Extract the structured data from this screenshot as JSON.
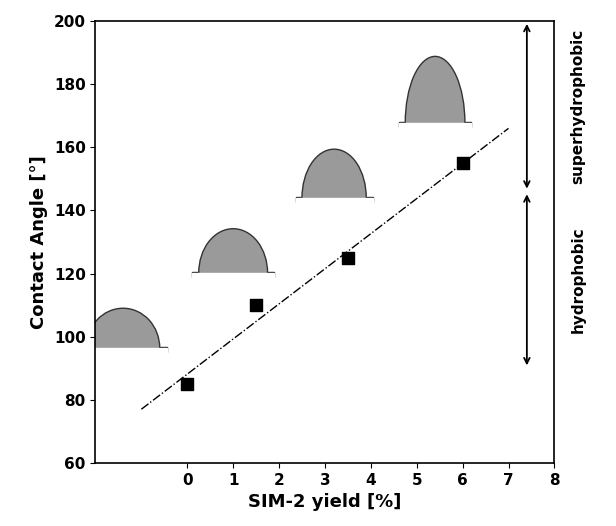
{
  "chart_data": {
    "type": "scatter",
    "x_label": "SIM-2 yield [%]",
    "y_label": "Contact Angle [°]",
    "x": [
      0,
      1.5,
      3.5,
      6
    ],
    "values": [
      85,
      110,
      125,
      155
    ],
    "color": "#000000",
    "marker": "square",
    "xlim": [
      -2,
      8
    ],
    "xticks": [
      0,
      1,
      2,
      3,
      4,
      5,
      6,
      7,
      8
    ],
    "ylim": [
      60,
      200
    ],
    "yticks": [
      60,
      80,
      100,
      120,
      140,
      160,
      180,
      200
    ],
    "grid": false,
    "trend_line": {
      "x": [
        -1,
        7
      ],
      "y": [
        77,
        166
      ],
      "line_style": "dashdot",
      "color": "#000000"
    },
    "annotations": [
      {
        "text": "superhydrophobic",
        "y_range": [
          146,
          200
        ]
      },
      {
        "text": "hydrophobic",
        "y_range": [
          90,
          146
        ]
      }
    ]
  }
}
